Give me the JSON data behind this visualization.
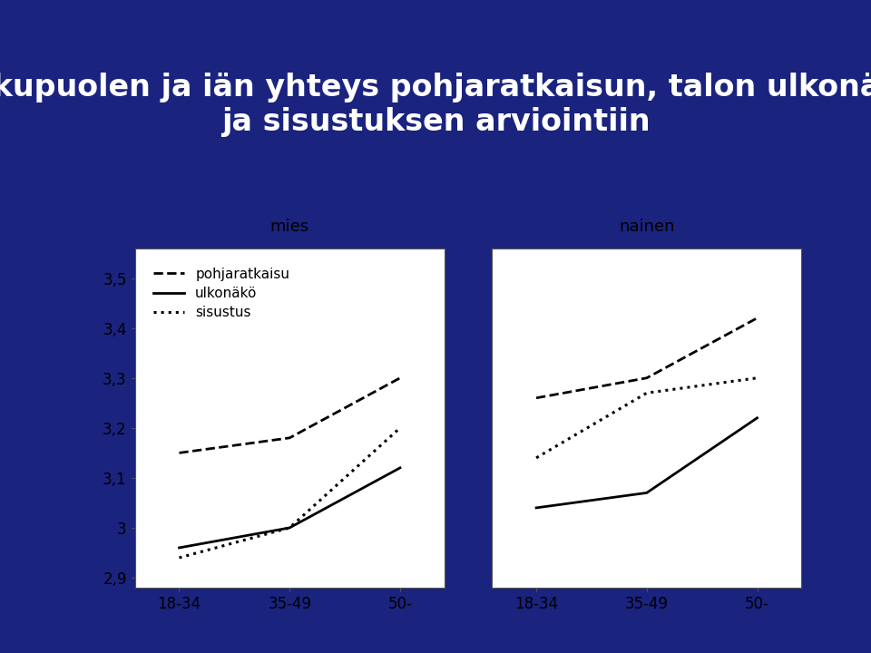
{
  "title": "Sukupuolen ja iän yhteys pohjaratkaisun, talon ulkonäön\nja sisustuksen arviointiin",
  "title_color": "white",
  "bg_color": "#1a237e",
  "panel_bg": "white",
  "x_labels": [
    "18-34",
    "35-49",
    "50-"
  ],
  "group_labels": [
    "mies",
    "nainen"
  ],
  "series": [
    {
      "name": "pohjaratkaisu",
      "linestyle": "--",
      "linewidth": 2.0
    },
    {
      "name": "ulkonäkö",
      "linestyle": "-",
      "linewidth": 2.0
    },
    {
      "name": "sisustus",
      "linestyle": ":",
      "linewidth": 2.2
    }
  ],
  "mies": {
    "pohjaratkaisu": [
      3.15,
      3.18,
      3.3
    ],
    "ulkonäkö": [
      2.96,
      3.0,
      3.12
    ],
    "sisustus": [
      2.94,
      3.0,
      3.2
    ]
  },
  "nainen": {
    "pohjaratkaisu": [
      3.26,
      3.3,
      3.42
    ],
    "ulkonäkö": [
      3.04,
      3.07,
      3.22
    ],
    "sisustus": [
      3.14,
      3.27,
      3.3
    ]
  },
  "ylim": [
    2.88,
    3.56
  ],
  "yticks": [
    2.9,
    3.0,
    3.1,
    3.2,
    3.3,
    3.4,
    3.5
  ],
  "ytick_labels": [
    "2,9",
    "3",
    "3,1",
    "3,2",
    "3,3",
    "3,4",
    "3,5"
  ],
  "line_color": "black",
  "legend_fontsize": 11,
  "axis_fontsize": 12,
  "group_label_fontsize": 13,
  "title_fontsize": 24
}
